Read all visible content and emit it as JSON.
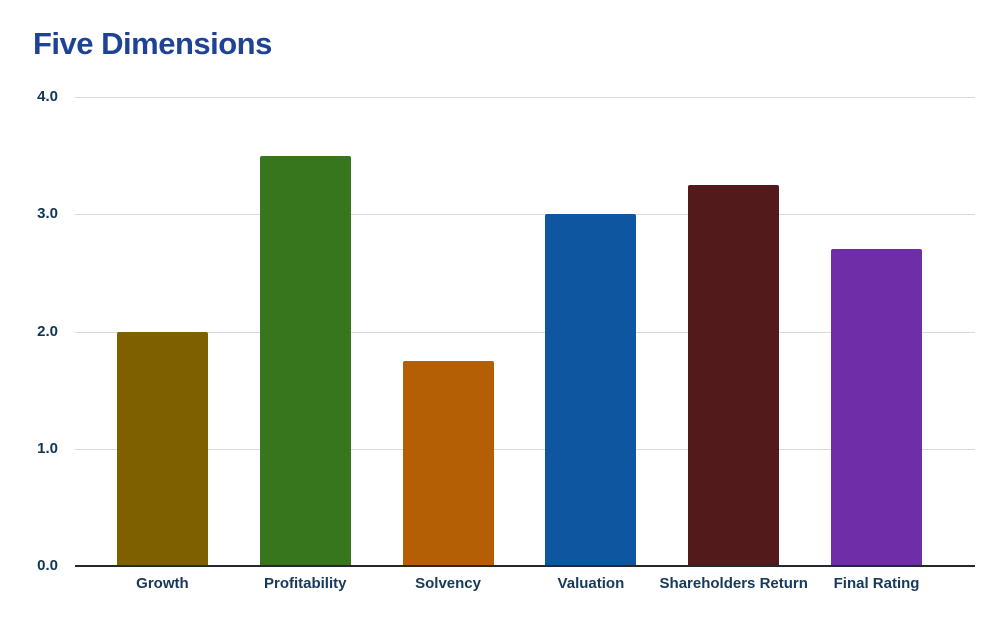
{
  "chart_data": {
    "type": "bar",
    "title": "Five Dimensions",
    "categories": [
      "Growth",
      "Profitability",
      "Solvency",
      "Valuation",
      "Shareholders Return",
      "Final Rating"
    ],
    "values": [
      2.0,
      3.5,
      1.75,
      3.0,
      3.25,
      2.7
    ],
    "bar_colors": [
      "#7F6000",
      "#38761D",
      "#B45F06",
      "#0E56A0",
      "#521A1A",
      "#6F2DA8"
    ],
    "xlabel": "",
    "ylabel": "",
    "ylim": [
      0,
      4
    ],
    "yticks": [
      {
        "value": 0,
        "label": "0.0"
      },
      {
        "value": 1,
        "label": "1.0"
      },
      {
        "value": 2,
        "label": "2.0"
      },
      {
        "value": 3,
        "label": "3.0"
      },
      {
        "value": 4,
        "label": "4.0"
      }
    ],
    "grid": true,
    "legend_position": "none"
  },
  "colors": {
    "background": "#FFFFFF",
    "title": "#1F4394",
    "y_tick_label": "#113552",
    "x_axis_label": "#16395C",
    "gridline": "#D9D9D9",
    "axis_line": "#24292E"
  }
}
